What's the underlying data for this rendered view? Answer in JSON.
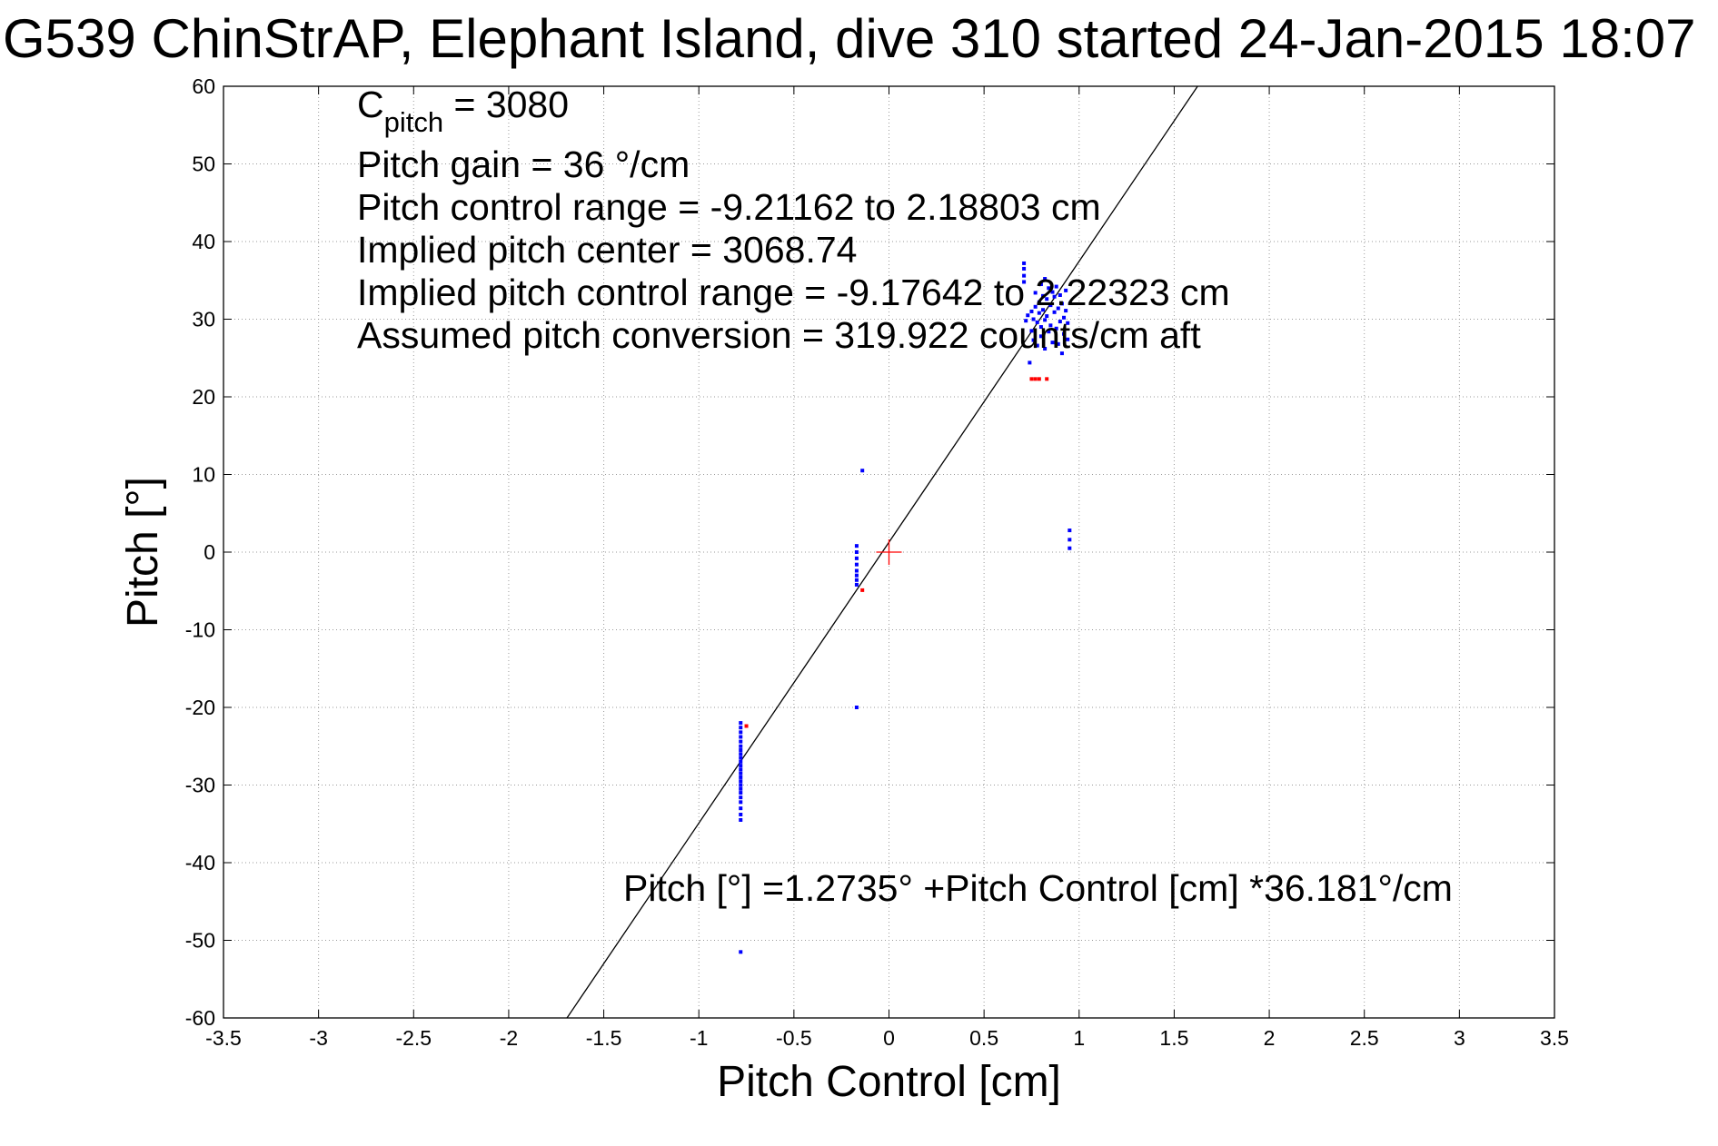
{
  "chart_data": {
    "type": "scatter",
    "title": "G539 ChinStrAP, Elephant Island, dive 310 started 24-Jan-2015 18:07",
    "xlabel": "Pitch Control [cm]",
    "ylabel": "Pitch [°]",
    "xlim": [
      -3.5,
      3.5
    ],
    "ylim": [
      -60,
      60
    ],
    "xticks": [
      -3.5,
      -3,
      -2.5,
      -2,
      -1.5,
      -1,
      -0.5,
      0,
      0.5,
      1,
      1.5,
      2,
      2.5,
      3,
      3.5
    ],
    "xtick_labels": [
      "-3.5",
      "-3",
      "-2.5",
      "-2",
      "-1.5",
      "-1",
      "-0.5",
      "0",
      "0.5",
      "1",
      "1.5",
      "2",
      "2.5",
      "3",
      "3.5"
    ],
    "yticks": [
      -60,
      -50,
      -40,
      -30,
      -20,
      -10,
      0,
      10,
      20,
      30,
      40,
      50,
      60
    ],
    "ytick_labels": [
      "-60",
      "-50",
      "-40",
      "-30",
      "-20",
      "-10",
      "0",
      "10",
      "20",
      "30",
      "40",
      "50",
      "60"
    ],
    "grid": true,
    "annotations": {
      "c_pitch_main": "C",
      "c_pitch_sub": "pitch",
      "c_pitch_value": " = 3080",
      "pitch_gain": "Pitch gain = 36 °/cm",
      "pitch_control_range": "Pitch control range = -9.21162 to 2.18803 cm",
      "implied_pitch_center": "Implied pitch center = 3068.74",
      "implied_pitch_control_range": "Implied pitch control range = -9.17642 to 2.22323 cm",
      "assumed_pitch_conversion": "Assumed pitch conversion = 319.922 counts/cm aft",
      "fit_equation": "Pitch [°] =1.2735° +Pitch Control [cm] *36.181°/cm"
    },
    "fit_line": {
      "intercept": 1.2735,
      "slope": 36.181,
      "color": "#000000"
    },
    "center_marker": {
      "x": 0,
      "y": 0,
      "color": "#ff0000"
    },
    "series": [
      {
        "color": "#0000ff",
        "points": [
          [
            -0.78,
            -22.0
          ],
          [
            -0.78,
            -22.6
          ],
          [
            -0.78,
            -23.2
          ],
          [
            -0.78,
            -23.8
          ],
          [
            -0.78,
            -24.4
          ],
          [
            -0.78,
            -25.0
          ],
          [
            -0.78,
            -25.5
          ],
          [
            -0.78,
            -26.0
          ],
          [
            -0.78,
            -26.5
          ],
          [
            -0.78,
            -27.0
          ],
          [
            -0.78,
            -27.5
          ],
          [
            -0.78,
            -28.0
          ],
          [
            -0.78,
            -28.5
          ],
          [
            -0.78,
            -29.0
          ],
          [
            -0.78,
            -29.5
          ],
          [
            -0.78,
            -30.0
          ],
          [
            -0.78,
            -30.5
          ],
          [
            -0.78,
            -31.0
          ],
          [
            -0.78,
            -31.6
          ],
          [
            -0.78,
            -32.2
          ],
          [
            -0.78,
            -33.0
          ],
          [
            -0.78,
            -33.8
          ],
          [
            -0.78,
            -34.5
          ],
          [
            -0.78,
            -51.5
          ],
          [
            -0.17,
            0.8
          ],
          [
            -0.17,
            0.0
          ],
          [
            -0.17,
            -0.8
          ],
          [
            -0.17,
            -1.6
          ],
          [
            -0.17,
            -2.4
          ],
          [
            -0.17,
            -3.0
          ],
          [
            -0.17,
            -3.6
          ],
          [
            -0.17,
            -4.2
          ],
          [
            -0.17,
            -20.0
          ],
          [
            -0.14,
            10.5
          ],
          [
            0.95,
            2.8
          ],
          [
            0.95,
            1.6
          ],
          [
            0.95,
            0.5
          ],
          [
            0.71,
            37.2
          ],
          [
            0.71,
            36.5
          ],
          [
            0.71,
            35.6
          ],
          [
            0.71,
            34.8
          ],
          [
            0.72,
            29.8
          ],
          [
            0.73,
            30.5
          ],
          [
            0.74,
            24.4
          ],
          [
            0.75,
            31.0
          ],
          [
            0.75,
            28.5
          ],
          [
            0.76,
            30.0
          ],
          [
            0.76,
            27.3
          ],
          [
            0.77,
            33.4
          ],
          [
            0.77,
            31.6
          ],
          [
            0.78,
            29.6
          ],
          [
            0.78,
            26.6
          ],
          [
            0.79,
            32.2
          ],
          [
            0.79,
            30.8
          ],
          [
            0.8,
            34.5
          ],
          [
            0.8,
            29.0
          ],
          [
            0.8,
            27.8
          ],
          [
            0.81,
            33.0
          ],
          [
            0.81,
            31.2
          ],
          [
            0.82,
            35.2
          ],
          [
            0.82,
            29.9
          ],
          [
            0.82,
            26.2
          ],
          [
            0.83,
            32.6
          ],
          [
            0.83,
            30.4
          ],
          [
            0.84,
            34.0
          ],
          [
            0.84,
            28.4
          ],
          [
            0.85,
            31.8
          ],
          [
            0.85,
            29.2
          ],
          [
            0.86,
            33.5
          ],
          [
            0.86,
            27.0
          ],
          [
            0.87,
            30.9
          ],
          [
            0.87,
            32.9
          ],
          [
            0.88,
            28.8
          ],
          [
            0.88,
            34.2
          ],
          [
            0.89,
            31.4
          ],
          [
            0.89,
            26.8
          ],
          [
            0.9,
            33.1
          ],
          [
            0.9,
            29.7
          ],
          [
            0.91,
            25.6
          ],
          [
            0.91,
            32.0
          ],
          [
            0.92,
            30.2
          ],
          [
            0.92,
            28.1
          ],
          [
            0.93,
            33.7
          ],
          [
            0.93,
            31.1
          ],
          [
            0.94,
            29.5
          ],
          [
            0.94,
            27.4
          ]
        ]
      },
      {
        "color": "#ff0000",
        "points": [
          [
            -0.75,
            -22.4
          ],
          [
            -0.14,
            -4.9
          ],
          [
            0.75,
            22.3
          ],
          [
            0.77,
            22.3
          ],
          [
            0.79,
            22.3
          ],
          [
            0.83,
            22.3
          ]
        ]
      }
    ]
  }
}
